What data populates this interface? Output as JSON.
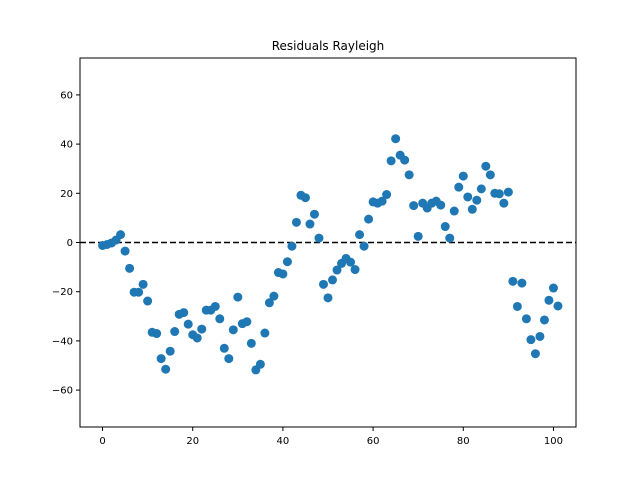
{
  "chart_data": {
    "type": "scatter",
    "title": "Residuals Rayleigh",
    "xlabel": "",
    "ylabel": "",
    "xlim": [
      -5,
      105
    ],
    "ylim": [
      -75,
      75
    ],
    "xticks": [
      0,
      20,
      40,
      60,
      80,
      100
    ],
    "yticks": [
      -60,
      -40,
      -20,
      0,
      20,
      40,
      60
    ],
    "grid": false,
    "reference_line": {
      "y": 0,
      "style": "dashed",
      "color": "#000000"
    },
    "series": [
      {
        "color": "#1f77b4",
        "marker": "circle",
        "points": [
          [
            0,
            -1.2
          ],
          [
            1,
            -0.8
          ],
          [
            2,
            -0.2
          ],
          [
            3,
            1.0
          ],
          [
            4,
            3.2
          ],
          [
            5,
            -3.5
          ],
          [
            6,
            -10.5
          ],
          [
            7,
            -20.2
          ],
          [
            8,
            -20.2
          ],
          [
            9,
            -17.0
          ],
          [
            10,
            -23.8
          ],
          [
            11,
            -36.5
          ],
          [
            12,
            -37.0
          ],
          [
            13,
            -47.2
          ],
          [
            14,
            -51.5
          ],
          [
            15,
            -44.2
          ],
          [
            16,
            -36.2
          ],
          [
            17,
            -29.2
          ],
          [
            18,
            -28.5
          ],
          [
            19,
            -33.2
          ],
          [
            20,
            -37.5
          ],
          [
            21,
            -38.8
          ],
          [
            22,
            -35.2
          ],
          [
            23,
            -27.5
          ],
          [
            24,
            -27.5
          ],
          [
            25,
            -26.0
          ],
          [
            26,
            -31.0
          ],
          [
            27,
            -43.0
          ],
          [
            28,
            -47.2
          ],
          [
            29,
            -35.5
          ],
          [
            30,
            -22.2
          ],
          [
            31,
            -33.0
          ],
          [
            32,
            -32.2
          ],
          [
            33,
            -41.0
          ],
          [
            34,
            -51.8
          ],
          [
            35,
            -49.5
          ],
          [
            36,
            -36.8
          ],
          [
            37,
            -24.5
          ],
          [
            38,
            -21.8
          ],
          [
            39,
            -12.2
          ],
          [
            40,
            -12.8
          ],
          [
            41,
            -7.8
          ],
          [
            42,
            -1.5
          ],
          [
            43,
            8.2
          ],
          [
            44,
            19.2
          ],
          [
            45,
            18.2
          ],
          [
            46,
            7.5
          ],
          [
            47,
            11.5
          ],
          [
            48,
            1.8
          ],
          [
            49,
            -17.0
          ],
          [
            50,
            -22.5
          ],
          [
            51,
            -15.2
          ],
          [
            52,
            -11.2
          ],
          [
            53,
            -8.5
          ],
          [
            54,
            -6.5
          ],
          [
            55,
            -8.0
          ],
          [
            56,
            -11.0
          ],
          [
            57,
            3.2
          ],
          [
            58,
            -1.5
          ],
          [
            59,
            9.5
          ],
          [
            60,
            16.5
          ],
          [
            61,
            16.0
          ],
          [
            62,
            16.8
          ],
          [
            63,
            19.5
          ],
          [
            64,
            33.2
          ],
          [
            65,
            42.2
          ],
          [
            66,
            35.5
          ],
          [
            67,
            33.5
          ],
          [
            68,
            27.5
          ],
          [
            69,
            15.0
          ],
          [
            70,
            2.5
          ],
          [
            71,
            16.0
          ],
          [
            72,
            14.0
          ],
          [
            73,
            16.0
          ],
          [
            74,
            16.8
          ],
          [
            75,
            15.2
          ],
          [
            76,
            6.5
          ],
          [
            77,
            1.8
          ],
          [
            78,
            12.8
          ],
          [
            79,
            22.5
          ],
          [
            80,
            27.0
          ],
          [
            81,
            18.5
          ],
          [
            82,
            13.5
          ],
          [
            83,
            17.2
          ],
          [
            84,
            21.8
          ],
          [
            85,
            31.0
          ],
          [
            86,
            27.5
          ],
          [
            87,
            20.0
          ],
          [
            88,
            19.8
          ],
          [
            89,
            16.0
          ],
          [
            90,
            20.5
          ],
          [
            91,
            -15.8
          ],
          [
            92,
            -26.0
          ],
          [
            93,
            -16.5
          ],
          [
            94,
            -31.0
          ],
          [
            95,
            -39.5
          ],
          [
            96,
            -45.2
          ],
          [
            97,
            -38.2
          ],
          [
            98,
            -31.5
          ],
          [
            99,
            -23.5
          ],
          [
            100,
            -18.5
          ],
          [
            101,
            -25.8
          ]
        ]
      }
    ]
  }
}
